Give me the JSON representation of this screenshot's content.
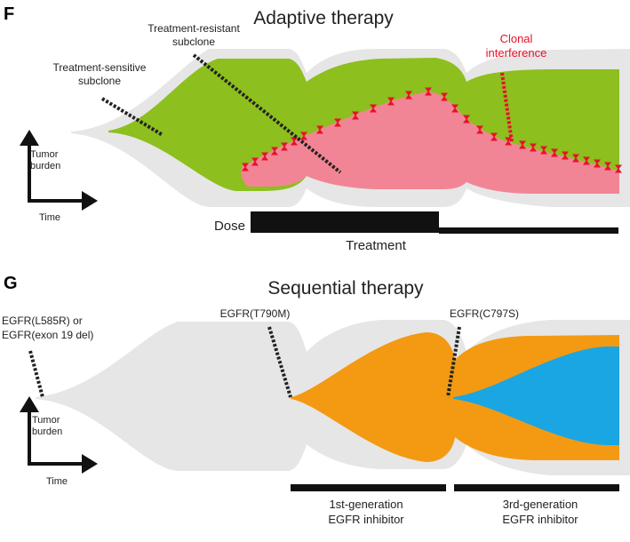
{
  "colors": {
    "background_tube": "#e6e6e6",
    "sensitive": "#8dbf1e",
    "resistant": "#f28595",
    "interference": "#e8102a",
    "egfr_t790m": "#f39a12",
    "egfr_c797s": "#1aa6e2",
    "bars": "#111111"
  },
  "panel_f": {
    "letter": "F",
    "title": "Adaptive therapy",
    "resistant_label": [
      "Treatment-resistant",
      "subclone"
    ],
    "sensitive_label": [
      "Treatment-sensitive",
      "subclone"
    ],
    "interference_label": [
      "Clonal",
      "interference"
    ],
    "axis_y_label": [
      "Tumor",
      "burden"
    ],
    "axis_x_label": "Time",
    "dose_label": "Dose",
    "treatment_label": "Treatment"
  },
  "panel_g": {
    "letter": "G",
    "title": "Sequential therapy",
    "initial_mutation": [
      "EGFR(L585R) or",
      "EGFR(exon 19 del)"
    ],
    "mutation_2": "EGFR(T790M)",
    "mutation_3": "EGFR(C797S)",
    "axis_y_label": [
      "Tumor",
      "burden"
    ],
    "axis_x_label": "Time",
    "treatment_1": [
      "1st-generation",
      "EGFR inhibitor"
    ],
    "treatment_2": [
      "3rd-generation",
      "EGFR inhibitor"
    ]
  }
}
